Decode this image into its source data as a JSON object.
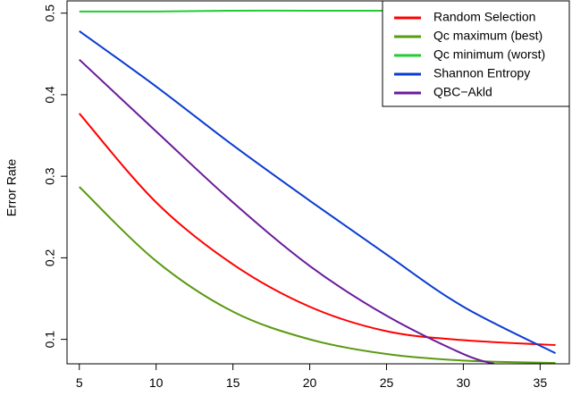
{
  "chart_data": {
    "type": "line",
    "title": "",
    "xlabel": "",
    "ylabel": "Error Rate",
    "xlim": [
      4.2,
      36.9
    ],
    "ylim": [
      0.07,
      0.515
    ],
    "xticks": [
      5,
      10,
      15,
      20,
      25,
      30,
      35
    ],
    "yticks": [
      0.1,
      0.2,
      0.3,
      0.4,
      0.5
    ],
    "grid": false,
    "legend_position": "top-right",
    "series": [
      {
        "name": "Random Selection",
        "color": "#ff0000",
        "x": [
          5,
          10,
          15,
          20,
          25,
          30,
          36
        ],
        "y": [
          0.377,
          0.268,
          0.192,
          0.14,
          0.11,
          0.099,
          0.093
        ]
      },
      {
        "name": "Qc maximum (best)",
        "color": "#5a9a10",
        "x": [
          5,
          10,
          15,
          20,
          25,
          30,
          36
        ],
        "y": [
          0.287,
          0.196,
          0.134,
          0.1,
          0.082,
          0.074,
          0.071
        ]
      },
      {
        "name": "Qc minimum (worst)",
        "color": "#22cc33",
        "x": [
          5,
          10,
          15,
          20,
          25,
          30,
          36
        ],
        "y": [
          0.502,
          0.502,
          0.503,
          0.503,
          0.503,
          0.503,
          0.503
        ]
      },
      {
        "name": "Shannon Entropy",
        "color": "#0a3cd0",
        "x": [
          5,
          10,
          15,
          20,
          25,
          30,
          36
        ],
        "y": [
          0.478,
          0.41,
          0.338,
          0.27,
          0.204,
          0.14,
          0.083
        ]
      },
      {
        "name": "QBC−Akld",
        "color": "#6a1a9a",
        "x": [
          5,
          10,
          15,
          20,
          25,
          30,
          32
        ],
        "y": [
          0.443,
          0.355,
          0.268,
          0.19,
          0.129,
          0.082,
          0.07
        ]
      }
    ]
  }
}
